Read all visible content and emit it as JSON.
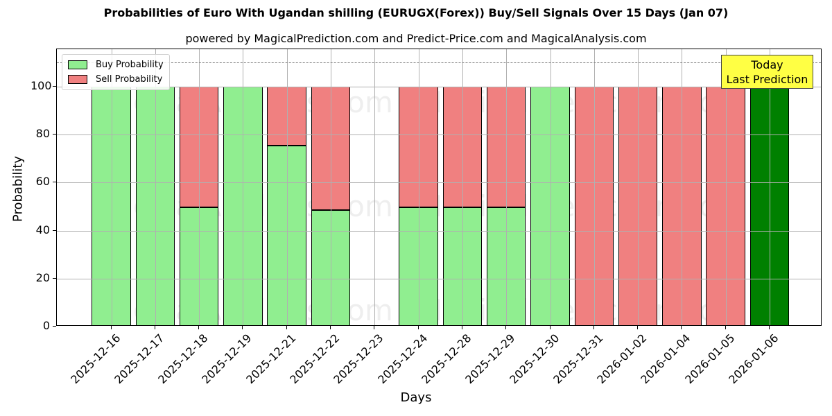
{
  "title": "Probabilities of Euro With Ugandan shilling (EURUGX(Forex)) Buy/Sell Signals Over 15 Days (Jan 07)",
  "subtitle": "powered by MagicalPrediction.com and Predict-Price.com and MagicalAnalysis.com",
  "legend": {
    "buy": "Buy Probability",
    "sell": "Sell Probability"
  },
  "annotation": {
    "line1": "Today",
    "line2": "Last Prediction"
  },
  "watermarks": [
    "MagicalAnalysis.com",
    "MagicalPrediction.com"
  ],
  "colors": {
    "buy": "#90ee90",
    "sell": "#f08080",
    "today": "#008000",
    "annotation_bg": "#ffff44",
    "threshold_line": "#808080"
  },
  "chart_data": {
    "type": "bar",
    "stacked": true,
    "title": "Probabilities of Euro With Ugandan shilling (EURUGX(Forex)) Buy/Sell Signals Over 15 Days (Jan 07)",
    "subtitle": "powered by MagicalPrediction.com and Predict-Price.com and MagicalAnalysis.com",
    "xlabel": "Days",
    "ylabel": "Probability",
    "ylim": [
      0,
      115
    ],
    "yticks": [
      0,
      20,
      40,
      60,
      80,
      100
    ],
    "grid": true,
    "legend_position": "upper left",
    "threshold_line": 110,
    "categories": [
      "2025-12-16",
      "2025-12-17",
      "2025-12-18",
      "2025-12-19",
      "2025-12-21",
      "2025-12-22",
      "2025-12-23",
      "2025-12-24",
      "2025-12-28",
      "2025-12-29",
      "2025-12-30",
      "2025-12-31",
      "2026-01-02",
      "2026-01-04",
      "2026-01-05",
      "2026-01-06"
    ],
    "series": [
      {
        "name": "Buy Probability",
        "values": [
          100,
          100,
          49.6,
          100,
          75.3,
          48.6,
          0,
          49.6,
          49.6,
          49.6,
          100,
          0,
          0,
          0,
          0,
          100
        ]
      },
      {
        "name": "Sell Probability",
        "values": [
          0,
          0,
          50.4,
          0,
          24.7,
          51.4,
          0,
          50.4,
          50.4,
          50.4,
          0,
          100,
          100,
          100,
          100,
          0
        ]
      }
    ],
    "annotations": [
      {
        "text": "Today\nLast Prediction",
        "x": "2026-01-06"
      }
    ]
  }
}
